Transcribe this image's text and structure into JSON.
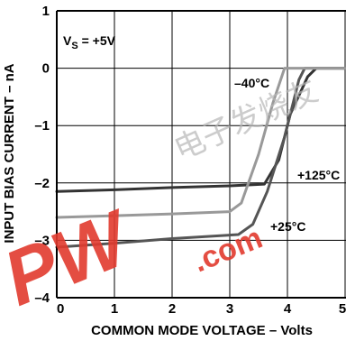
{
  "chart_data": {
    "type": "line",
    "xlabel": "COMMON MODE VOLTAGE – Volts",
    "ylabel": "INPUT BIAS CURRENT – nA",
    "xlim": [
      0,
      5
    ],
    "ylim": [
      -4,
      1
    ],
    "x_ticks": [
      "0",
      "1",
      "2",
      "3",
      "4",
      "5"
    ],
    "y_ticks": [
      "1",
      "0",
      "–1",
      "–2",
      "–3",
      "–4"
    ],
    "grid": true,
    "annotations": {
      "supply": {
        "prefix": "V",
        "sub": "S",
        "suffix": " = +5V"
      },
      "labels": [
        "–40°C",
        "+125°C",
        "+25°C"
      ]
    },
    "series": [
      {
        "name": "+125°C",
        "color": "#333333",
        "points": [
          [
            0,
            -2.15
          ],
          [
            1,
            -2.12
          ],
          [
            2,
            -2.08
          ],
          [
            3,
            -2.05
          ],
          [
            3.6,
            -2.02
          ],
          [
            3.85,
            -1.6
          ],
          [
            4.05,
            -0.8
          ],
          [
            4.35,
            -0.15
          ],
          [
            4.5,
            0.0
          ],
          [
            5,
            0.0
          ]
        ]
      },
      {
        "name": "+25°C",
        "color": "#555555",
        "points": [
          [
            0,
            -3.12
          ],
          [
            1,
            -3.05
          ],
          [
            2,
            -2.97
          ],
          [
            3.15,
            -2.9
          ],
          [
            3.4,
            -2.72
          ],
          [
            3.65,
            -2.15
          ],
          [
            3.95,
            -1.2
          ],
          [
            4.2,
            -0.2
          ],
          [
            4.3,
            0.0
          ],
          [
            5,
            0.0
          ]
        ]
      },
      {
        "name": "–40°C",
        "color": "#999999",
        "points": [
          [
            0,
            -2.6
          ],
          [
            1,
            -2.57
          ],
          [
            2,
            -2.54
          ],
          [
            3,
            -2.5
          ],
          [
            3.2,
            -2.35
          ],
          [
            3.5,
            -1.5
          ],
          [
            3.75,
            -0.6
          ],
          [
            3.95,
            0.0
          ],
          [
            5,
            0.0
          ]
        ]
      }
    ]
  },
  "watermark": {
    "letters": "PW",
    "dot_text": ".com",
    "glyphs": "电子发烧友",
    "color": "#e23a2e"
  }
}
